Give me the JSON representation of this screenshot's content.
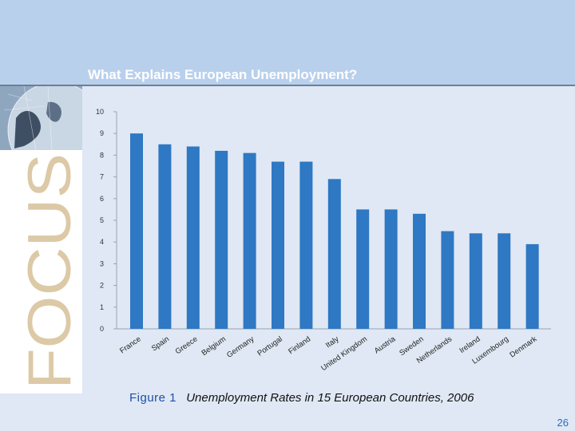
{
  "slide": {
    "title": "What Explains European Unemployment?",
    "side_word": "FOCUS",
    "page_number": "26"
  },
  "caption": {
    "label": "Figure 1",
    "title": "Unemployment Rates in 15 European Countries, 2006"
  },
  "colors": {
    "bar": "#2e78c4",
    "band": "#b9d0ec",
    "background": "#dfe8f4",
    "focus_text": "#dcc9a6"
  },
  "chart_data": {
    "type": "bar",
    "categories": [
      "France",
      "Spain",
      "Greece",
      "Belgium",
      "Germany",
      "Portugal",
      "Finland",
      "Italy",
      "United Kingdom",
      "Austria",
      "Sweden",
      "Netherlands",
      "Ireland",
      "Luxembourg",
      "Denmark"
    ],
    "values": [
      9.0,
      8.5,
      8.4,
      8.2,
      8.1,
      7.7,
      7.7,
      6.9,
      5.5,
      5.5,
      5.3,
      4.5,
      4.4,
      4.4,
      3.9
    ],
    "yticks": [
      0,
      1,
      2,
      3,
      4,
      5,
      6,
      7,
      8,
      9,
      10
    ],
    "ylim": [
      0,
      10
    ],
    "grid": false,
    "title": "",
    "xlabel": "",
    "ylabel": ""
  }
}
